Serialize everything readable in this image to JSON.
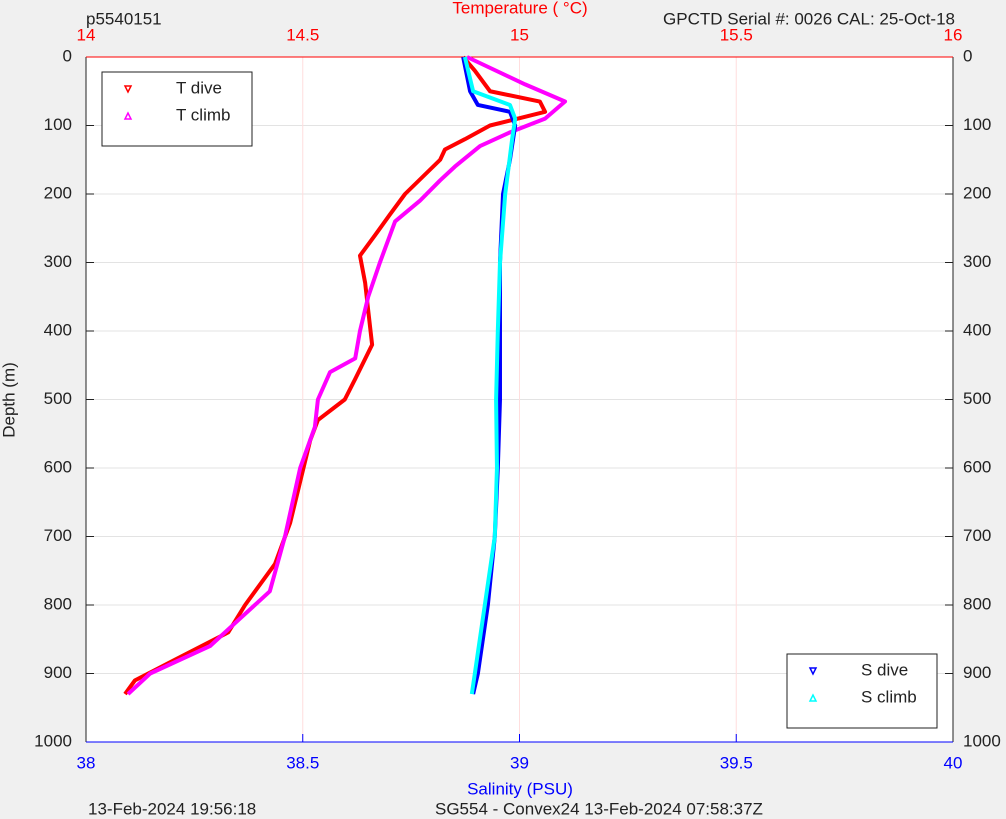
{
  "chart_data": {
    "type": "profile",
    "title": "p5540151",
    "subtitle": "GPCTD Serial #: 0026 CAL: 25-Oct-18",
    "x2_label": "Temperature (   °C)",
    "x_label": "Salinity (PSU)",
    "y_label": "Depth (m)",
    "footer_left": "13-Feb-2024 19:56:18",
    "footer_right": "SG554 - Convex24 13-Feb-2024 07:58:37Z",
    "ylim": [
      0,
      1000
    ],
    "yticks": [
      0,
      100,
      200,
      300,
      400,
      500,
      600,
      700,
      800,
      900,
      1000
    ],
    "y_reversed": true,
    "x2lim": [
      14,
      16
    ],
    "x2ticks": [
      14,
      14.5,
      15,
      15.5,
      16
    ],
    "x2_color": "#ff0000",
    "xlim": [
      38,
      40
    ],
    "xticks": [
      38,
      38.5,
      39,
      39.5,
      40
    ],
    "x_color": "#0000ff",
    "grid": true,
    "series": [
      {
        "name": "T dive",
        "color": "#ff0000",
        "axis": "x2",
        "legend": "upper left",
        "depth": [
          0,
          20,
          50,
          65,
          80,
          100,
          120,
          135,
          150,
          200,
          230,
          260,
          290,
          330,
          370,
          420,
          470,
          500,
          530,
          560,
          620,
          680,
          740,
          800,
          840,
          880,
          910,
          930
        ],
        "values": [
          14.87,
          14.897,
          14.932,
          15.047,
          15.059,
          14.932,
          14.874,
          14.828,
          14.817,
          14.736,
          14.701,
          14.667,
          14.632,
          14.644,
          14.651,
          14.66,
          14.621,
          14.597,
          14.535,
          14.517,
          14.494,
          14.471,
          14.436,
          14.367,
          14.328,
          14.205,
          14.113,
          14.09
        ]
      },
      {
        "name": "T climb",
        "color": "#ff00ff",
        "axis": "x2",
        "legend": "upper left",
        "depth": [
          0,
          40,
          65,
          90,
          110,
          130,
          160,
          180,
          210,
          240,
          300,
          350,
          400,
          440,
          460,
          500,
          540,
          600,
          700,
          780,
          820,
          860,
          900,
          930
        ],
        "values": [
          14.879,
          15.013,
          15.105,
          15.059,
          14.978,
          14.909,
          14.851,
          14.817,
          14.77,
          14.713,
          14.678,
          14.651,
          14.632,
          14.621,
          14.563,
          14.535,
          14.528,
          14.494,
          14.459,
          14.424,
          14.355,
          14.286,
          14.148,
          14.097
        ]
      },
      {
        "name": "S dive",
        "color": "#0000ff",
        "axis": "x",
        "legend": "lower right",
        "depth": [
          0,
          50,
          70,
          80,
          100,
          150,
          200,
          300,
          400,
          500,
          600,
          700,
          800,
          900,
          930
        ],
        "values": [
          38.87,
          38.886,
          38.904,
          38.978,
          38.99,
          38.978,
          38.962,
          38.955,
          38.955,
          38.955,
          38.95,
          38.943,
          38.927,
          38.904,
          38.893
        ]
      },
      {
        "name": "S climb",
        "color": "#00ffff",
        "axis": "x",
        "legend": "lower right",
        "depth": [
          0,
          50,
          70,
          90,
          120,
          200,
          300,
          400,
          500,
          600,
          700,
          800,
          900,
          930
        ],
        "values": [
          38.874,
          38.893,
          38.978,
          38.99,
          38.983,
          38.967,
          38.955,
          38.95,
          38.946,
          38.948,
          38.943,
          38.92,
          38.897,
          38.89
        ]
      }
    ]
  }
}
